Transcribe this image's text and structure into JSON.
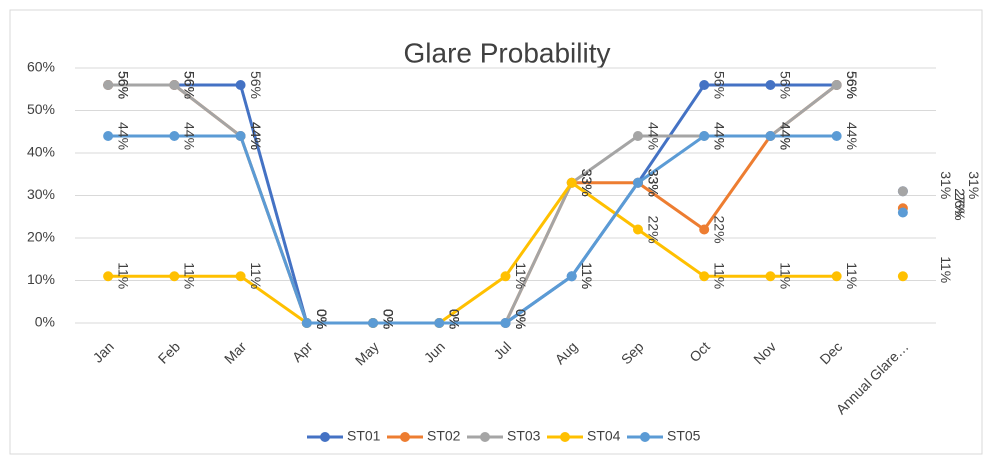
{
  "chart_data": {
    "type": "line",
    "title": "Glare Probability",
    "categories": [
      "Jan",
      "Feb",
      "Mar",
      "Apr",
      "May",
      "Jun",
      "Jul",
      "Aug",
      "Sep",
      "Oct",
      "Nov",
      "Dec",
      "Annual Glare…"
    ],
    "ylim": [
      0,
      60
    ],
    "yticks": [
      {
        "value": 0,
        "label": "0%"
      },
      {
        "value": 10,
        "label": "10%"
      },
      {
        "value": 20,
        "label": "20%"
      },
      {
        "value": 30,
        "label": "30%"
      },
      {
        "value": 40,
        "label": "40%"
      },
      {
        "value": 50,
        "label": "50%"
      },
      {
        "value": 60,
        "label": "60%"
      }
    ],
    "grid": true,
    "legend": "bottom",
    "series": [
      {
        "name": "ST01",
        "color": "#4472c4",
        "values": [
          56,
          56,
          56,
          0,
          0,
          0,
          0,
          11,
          33,
          56,
          56,
          56,
          31
        ],
        "value_labels": [
          "56%",
          "56%",
          "56%",
          "0%",
          "0%",
          "0%",
          "0%",
          "11%",
          "33%",
          "56%",
          "56%",
          "56%",
          "31%"
        ]
      },
      {
        "name": "ST02",
        "color": "#ed7d31",
        "values": [
          56,
          56,
          44,
          0,
          0,
          0,
          0,
          33,
          33,
          22,
          44,
          56,
          27
        ],
        "value_labels": [
          "56%",
          "56%",
          "44%",
          "0%",
          "0%",
          "0%",
          "0%",
          "33%",
          "33%",
          "22%",
          "44%",
          "56%",
          "27%"
        ]
      },
      {
        "name": "ST03",
        "color": "#a5a5a5",
        "values": [
          56,
          56,
          44,
          0,
          0,
          0,
          0,
          33,
          44,
          44,
          44,
          56,
          31
        ],
        "value_labels": [
          "56%",
          "56%",
          "44%",
          "0%",
          "0%",
          "0%",
          "0%",
          "33%",
          "44%",
          "44%",
          "44%",
          "56%",
          "31%"
        ]
      },
      {
        "name": "ST04",
        "color": "#ffc000",
        "values": [
          11,
          11,
          11,
          0,
          0,
          0,
          11,
          33,
          22,
          11,
          11,
          11,
          11
        ],
        "value_labels": [
          "11%",
          "11%",
          "11%",
          "0%",
          "0%",
          "0%",
          "11%",
          "33%",
          "22%",
          "11%",
          "11%",
          "11%",
          "11%"
        ]
      },
      {
        "name": "ST05",
        "color": "#5b9bd5",
        "values": [
          44,
          44,
          44,
          0,
          0,
          0,
          0,
          11,
          33,
          44,
          44,
          44,
          26
        ],
        "value_labels": [
          "44%",
          "44%",
          "44%",
          "0%",
          "0%",
          "0%",
          "0%",
          "11%",
          "33%",
          "44%",
          "44%",
          "44%",
          "26%"
        ]
      }
    ]
  }
}
